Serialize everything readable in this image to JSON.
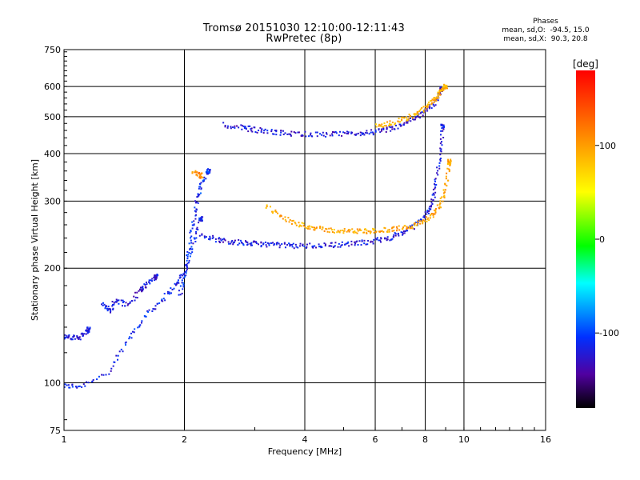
{
  "title_line1": "Tromsø 20151030 12:10:00-12:11:43",
  "title_line2": "RwPretec (8p)",
  "phases_box": {
    "heading": "Phases",
    "line_o": "mean, sd,O:  -94.5, 15.0",
    "line_x": "mean, sd,X:  90.3, 20.8"
  },
  "colorbar": {
    "label": "[deg]",
    "range": [
      -180,
      180
    ],
    "ticks": [
      100,
      0,
      -100
    ],
    "tick_labels": [
      "100",
      "0",
      "-100"
    ]
  },
  "chart_data": {
    "type": "scatter",
    "xlabel": "Frequency [MHz]",
    "ylabel": "Stationary phase Virtual Height [km]",
    "xscale": "log",
    "yscale": "log",
    "xlim": [
      1,
      16
    ],
    "ylim": [
      75,
      750
    ],
    "x_ticks": [
      1,
      2,
      4,
      6,
      8,
      10,
      16
    ],
    "x_tick_labels": [
      "1",
      "2",
      "4",
      "6",
      "8",
      "10",
      "16"
    ],
    "y_ticks": [
      75,
      100,
      200,
      300,
      400,
      500,
      600,
      750
    ],
    "y_tick_labels": [
      "75",
      "100",
      "200",
      "300",
      "400",
      "500",
      "600",
      "750"
    ],
    "grid": true,
    "color_value": "phase [deg]",
    "traces": [
      {
        "x": [
          1.0,
          1.1,
          1.3,
          1.45,
          1.6,
          1.75,
          1.9,
          2.0,
          2.1,
          2.2
        ],
        "y": [
          98,
          98,
          107,
          130,
          150,
          165,
          180,
          195,
          230,
          270
        ],
        "phase": -110
      },
      {
        "x": [
          1.0,
          1.05,
          1.1,
          1.15
        ],
        "y": [
          132,
          131,
          132,
          138
        ],
        "phase": -115
      },
      {
        "x": [
          1.25,
          1.3,
          1.35,
          1.45,
          1.55,
          1.6,
          1.7
        ],
        "y": [
          160,
          155,
          165,
          160,
          175,
          180,
          190
        ],
        "phase": -118
      },
      {
        "x": [
          1.95,
          2.0,
          2.05,
          2.1,
          2.15,
          2.2,
          2.3
        ],
        "y": [
          170,
          190,
          220,
          260,
          300,
          330,
          360
        ],
        "phase": -105
      },
      {
        "x": [
          2.2,
          2.4,
          2.6,
          2.8,
          3.0,
          3.2,
          3.5,
          3.8,
          4.2,
          4.6,
          5.0,
          5.5,
          6.0,
          6.5,
          7.0,
          7.5,
          8.0,
          8.3,
          8.5,
          8.7,
          8.85
        ],
        "y": [
          245,
          238,
          235,
          233,
          232,
          231,
          230,
          229,
          229,
          230,
          231,
          233,
          236,
          240,
          247,
          258,
          275,
          295,
          330,
          390,
          470
        ],
        "phase": -115
      },
      {
        "x": [
          2.5,
          2.8,
          3.0,
          3.3,
          3.6,
          4.0,
          4.5,
          5.0,
          5.5,
          6.0,
          6.5,
          7.0,
          7.5,
          8.0,
          8.5,
          8.8
        ],
        "y": [
          475,
          468,
          462,
          456,
          452,
          450,
          449,
          450,
          452,
          456,
          463,
          475,
          493,
          515,
          548,
          590
        ],
        "phase": -120
      },
      {
        "x": [
          3.2,
          3.5,
          3.8,
          4.1,
          4.4,
          4.8,
          5.2,
          5.6,
          6.0,
          6.5,
          7.0,
          7.5,
          8.0,
          8.5,
          8.8,
          9.0,
          9.2
        ],
        "y": [
          290,
          272,
          262,
          257,
          253,
          251,
          250,
          250,
          251,
          252,
          255,
          259,
          266,
          280,
          300,
          330,
          380
        ],
        "phase": 95
      },
      {
        "x": [
          6.0,
          6.5,
          7.0,
          7.5,
          8.0,
          8.3,
          8.6,
          8.8,
          9.0
        ],
        "y": [
          470,
          478,
          490,
          505,
          525,
          545,
          570,
          590,
          600
        ],
        "phase": 90
      },
      {
        "x": [
          2.1,
          2.2
        ],
        "y": [
          360,
          350
        ],
        "phase": 110
      }
    ]
  }
}
